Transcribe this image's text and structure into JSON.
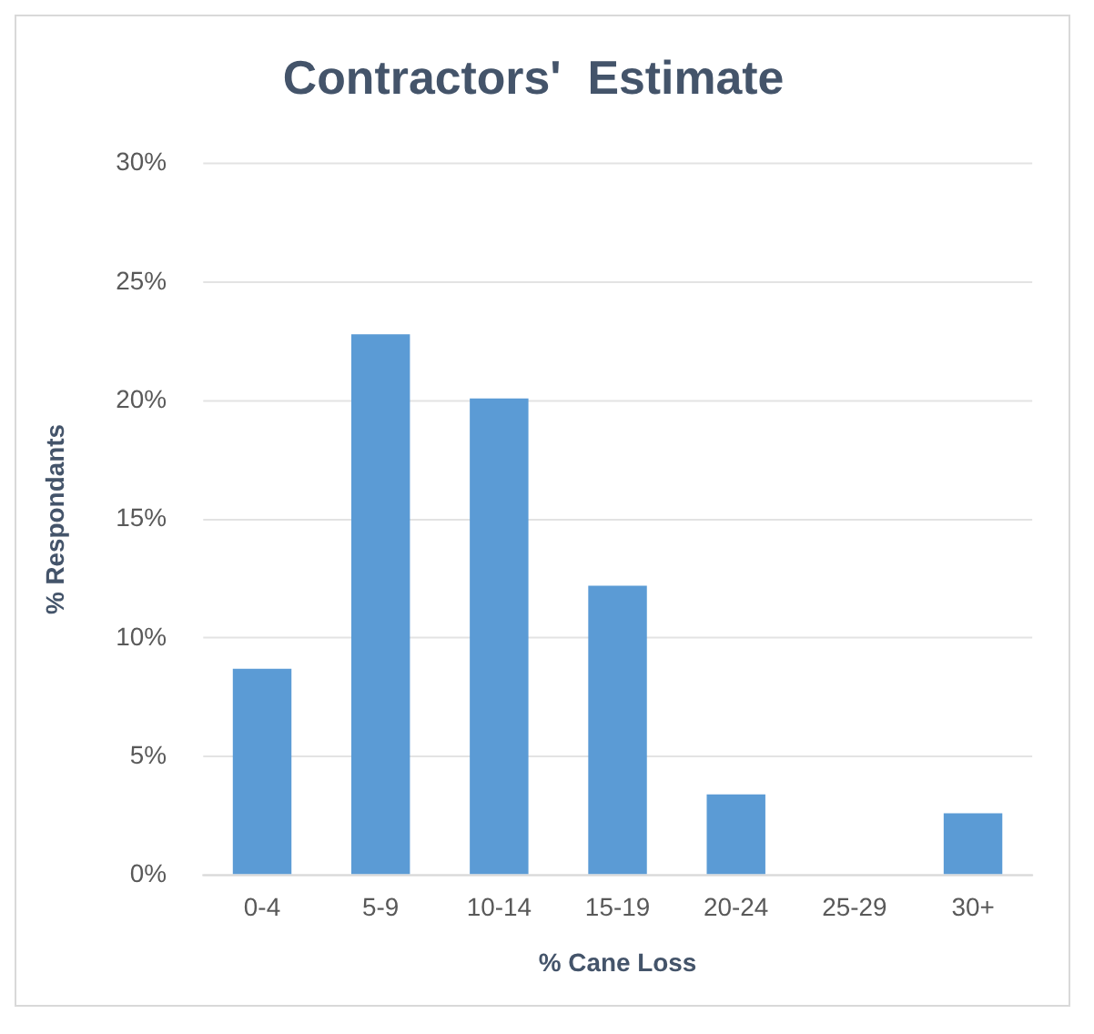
{
  "chart_data": {
    "type": "bar",
    "title": "Contractors'  Estimate",
    "xlabel": "% Cane Loss",
    "ylabel": "% Respondants",
    "categories": [
      "0-4",
      "5-9",
      "10-14",
      "15-19",
      "20-24",
      "25-29",
      "30+"
    ],
    "values": [
      8.7,
      22.8,
      20.1,
      12.2,
      3.4,
      0,
      2.6
    ],
    "color": "#5b9bd5",
    "ylim": [
      0,
      30
    ],
    "yticks": [
      {
        "value": 0,
        "label": "0%"
      },
      {
        "value": 5,
        "label": "5%"
      },
      {
        "value": 10,
        "label": "10%"
      },
      {
        "value": 15,
        "label": "15%"
      },
      {
        "value": 20,
        "label": "20%"
      },
      {
        "value": 25,
        "label": "25%"
      },
      {
        "value": 30,
        "label": "30%"
      }
    ],
    "grid": "y",
    "legend": false
  }
}
